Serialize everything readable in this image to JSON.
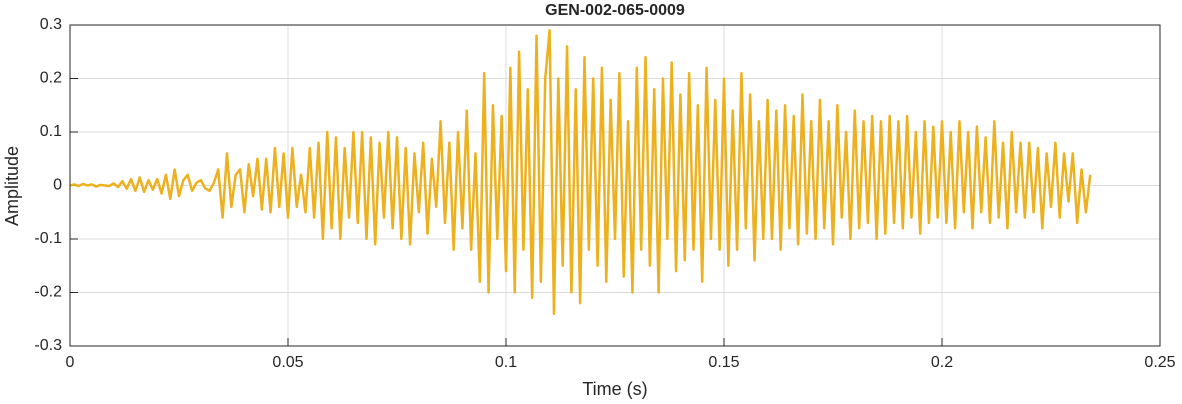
{
  "chart_data": {
    "type": "line",
    "title": "GEN-002-065-0009",
    "x_label": "Time (s)",
    "y_label": "Amplitude",
    "color": "#edb120",
    "grid": true,
    "xlim": [
      0,
      0.25
    ],
    "xticks": [
      0,
      0.05,
      0.1,
      0.15,
      0.2,
      0.25
    ],
    "ylim": [
      -0.3,
      0.3
    ],
    "yticks": [
      -0.3,
      -0.2,
      -0.1,
      0,
      0.1,
      0.2,
      0.3
    ],
    "x": [
      0,
      0.001,
      0.002,
      0.003,
      0.004,
      0.005,
      0.006,
      0.007,
      0.008,
      0.009,
      0.01,
      0.011,
      0.012,
      0.013,
      0.014,
      0.015,
      0.016,
      0.017,
      0.018,
      0.019,
      0.02,
      0.021,
      0.022,
      0.023,
      0.024,
      0.025,
      0.026,
      0.027,
      0.028,
      0.029,
      0.03,
      0.031,
      0.032,
      0.033,
      0.034,
      0.035,
      0.036,
      0.037,
      0.038,
      0.039,
      0.04,
      0.041,
      0.042,
      0.043,
      0.044,
      0.045,
      0.046,
      0.047,
      0.048,
      0.049,
      0.05,
      0.051,
      0.052,
      0.053,
      0.054,
      0.055,
      0.056,
      0.057,
      0.058,
      0.059,
      0.06,
      0.061,
      0.062,
      0.063,
      0.064,
      0.065,
      0.066,
      0.067,
      0.068,
      0.069,
      0.07,
      0.071,
      0.072,
      0.073,
      0.074,
      0.075,
      0.076,
      0.077,
      0.078,
      0.079,
      0.08,
      0.081,
      0.082,
      0.083,
      0.084,
      0.085,
      0.086,
      0.087,
      0.088,
      0.089,
      0.09,
      0.091,
      0.092,
      0.093,
      0.094,
      0.095,
      0.096,
      0.097,
      0.098,
      0.099,
      0.1,
      0.101,
      0.102,
      0.103,
      0.104,
      0.105,
      0.106,
      0.107,
      0.108,
      0.109,
      0.11,
      0.111,
      0.112,
      0.113,
      0.114,
      0.115,
      0.116,
      0.117,
      0.118,
      0.119,
      0.12,
      0.121,
      0.122,
      0.123,
      0.124,
      0.125,
      0.126,
      0.127,
      0.128,
      0.129,
      0.13,
      0.131,
      0.132,
      0.133,
      0.134,
      0.135,
      0.136,
      0.137,
      0.138,
      0.139,
      0.14,
      0.141,
      0.142,
      0.143,
      0.144,
      0.145,
      0.146,
      0.147,
      0.148,
      0.149,
      0.15,
      0.151,
      0.152,
      0.153,
      0.154,
      0.155,
      0.156,
      0.157,
      0.158,
      0.159,
      0.16,
      0.161,
      0.162,
      0.163,
      0.164,
      0.165,
      0.166,
      0.167,
      0.168,
      0.169,
      0.17,
      0.171,
      0.172,
      0.173,
      0.174,
      0.175,
      0.176,
      0.177,
      0.178,
      0.179,
      0.18,
      0.181,
      0.182,
      0.183,
      0.184,
      0.185,
      0.186,
      0.187,
      0.188,
      0.189,
      0.19,
      0.191,
      0.192,
      0.193,
      0.194,
      0.195,
      0.196,
      0.197,
      0.198,
      0.199,
      0.2,
      0.201,
      0.202,
      0.203,
      0.204,
      0.205,
      0.206,
      0.207,
      0.208,
      0.209,
      0.21,
      0.211,
      0.212,
      0.213,
      0.214,
      0.215,
      0.216,
      0.217,
      0.218,
      0.219,
      0.22,
      0.221,
      0.222,
      0.223,
      0.224,
      0.225,
      0.226,
      0.227,
      0.228,
      0.229,
      0.23,
      0.231,
      0.232,
      0.233,
      0.234
    ],
    "values": [
      0,
      0.002,
      -0.001,
      0.003,
      0,
      0.002,
      -0.002,
      0.001,
      0,
      -0.001,
      0.004,
      -0.003,
      0.008,
      -0.006,
      0.012,
      -0.01,
      0.015,
      -0.012,
      0.01,
      -0.008,
      0.012,
      -0.015,
      0.02,
      -0.025,
      0.03,
      -0.02,
      0.01,
      0.02,
      -0.01,
      0.005,
      0.01,
      -0.005,
      -0.01,
      0.005,
      0.03,
      -0.06,
      0.06,
      -0.04,
      0.02,
      0.03,
      -0.05,
      0.04,
      -0.02,
      0.05,
      -0.045,
      0.05,
      -0.05,
      0.07,
      -0.04,
      0.06,
      -0.06,
      0.07,
      -0.04,
      0.02,
      -0.05,
      0.07,
      -0.06,
      0.08,
      -0.1,
      0.1,
      -0.08,
      0.09,
      -0.1,
      0.07,
      -0.06,
      0.1,
      -0.07,
      0.1,
      -0.1,
      0.09,
      -0.11,
      0.08,
      -0.06,
      0.1,
      -0.08,
      0.09,
      -0.1,
      0.07,
      -0.11,
      0.06,
      -0.05,
      0.08,
      -0.09,
      0.05,
      -0.04,
      0.12,
      -0.07,
      0.08,
      -0.12,
      0.1,
      -0.08,
      0.14,
      -0.12,
      0.06,
      -0.18,
      0.21,
      -0.2,
      0.15,
      -0.1,
      0.13,
      -0.16,
      0.22,
      -0.2,
      0.25,
      -0.12,
      0.18,
      -0.21,
      0.28,
      -0.18,
      0.2,
      0.29,
      -0.24,
      0.2,
      -0.15,
      0.26,
      -0.2,
      0.18,
      -0.22,
      0.24,
      -0.12,
      0.2,
      -0.15,
      0.22,
      -0.18,
      0.16,
      -0.1,
      0.21,
      -0.17,
      0.12,
      -0.2,
      0.22,
      -0.12,
      0.24,
      -0.15,
      0.18,
      -0.2,
      0.2,
      -0.1,
      0.23,
      -0.16,
      0.17,
      -0.14,
      0.21,
      -0.12,
      0.15,
      -0.18,
      0.22,
      -0.1,
      0.16,
      -0.12,
      0.2,
      -0.15,
      0.14,
      -0.12,
      0.21,
      -0.08,
      0.17,
      -0.14,
      0.12,
      -0.1,
      0.16,
      -0.1,
      0.14,
      -0.12,
      0.15,
      -0.08,
      0.13,
      -0.11,
      0.17,
      -0.09,
      0.12,
      -0.1,
      0.16,
      -0.08,
      0.12,
      -0.11,
      0.15,
      -0.06,
      0.1,
      -0.1,
      0.14,
      -0.08,
      0.12,
      -0.07,
      0.13,
      -0.1,
      0.12,
      -0.09,
      0.13,
      -0.07,
      0.12,
      -0.08,
      0.13,
      -0.06,
      0.1,
      -0.09,
      0.12,
      -0.07,
      0.11,
      -0.06,
      0.12,
      -0.07,
      0.1,
      -0.08,
      0.12,
      -0.05,
      0.1,
      -0.08,
      0.11,
      -0.05,
      0.09,
      -0.07,
      0.12,
      -0.06,
      0.08,
      -0.08,
      0.1,
      -0.05,
      0.08,
      -0.06,
      0.08,
      -0.05,
      0.07,
      -0.08,
      0.06,
      -0.04,
      0.08,
      -0.06,
      0.06,
      -0.03,
      0.06,
      -0.07,
      0.03,
      -0.05,
      0.02
    ]
  }
}
